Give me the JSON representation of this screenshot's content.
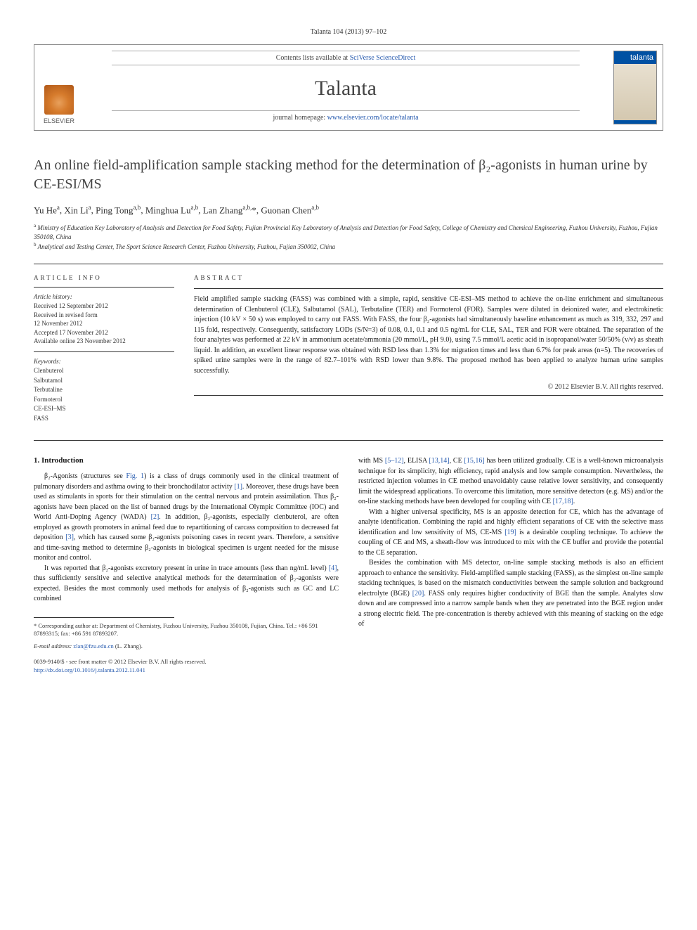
{
  "citation": "Talanta 104 (2013) 97–102",
  "header": {
    "contents_prefix": "Contents lists available at ",
    "contents_link": "SciVerse ScienceDirect",
    "journal_name": "Talanta",
    "homepage_prefix": "journal homepage: ",
    "homepage_link": "www.elsevier.com/locate/talanta",
    "publisher_name": "ELSEVIER",
    "cover_label": "talanta"
  },
  "title": "An online field-amplification sample stacking method for the determination of β₂-agonists in human urine by CE-ESI/MS",
  "authors_html": "Yu He<span class='sup'>a</span>, Xin Li<span class='sup'>a</span>, Ping Tong<span class='sup'>a,b</span>, Minghua Lu<span class='sup'>a,b</span>, Lan Zhang<span class='sup'>a,b,</span>*, Guonan Chen<span class='sup'>a,b</span>",
  "affiliations": [
    {
      "sup": "a",
      "text": "Ministry of Education Key Laboratory of Analysis and Detection for Food Safety, Fujian Provincial Key Laboratory of Analysis and Detection for Food Safety, College of Chemistry and Chemical Engineering, Fuzhou University, Fuzhou, Fujian 350108, China"
    },
    {
      "sup": "b",
      "text": "Analytical and Testing Center, The Sport Science Research Center, Fuzhou University, Fuzhou, Fujian 350002, China"
    }
  ],
  "article_info": {
    "heading": "ARTICLE INFO",
    "history_label": "Article history:",
    "history": "Received 12 September 2012\nReceived in revised form\n12 November 2012\nAccepted 17 November 2012\nAvailable online 23 November 2012",
    "keywords_label": "Keywords:",
    "keywords": [
      "Clenbuterol",
      "Salbutamol",
      "Terbutaline",
      "Formoterol",
      "CE-ESI–MS",
      "FASS"
    ]
  },
  "abstract": {
    "heading": "ABSTRACT",
    "text": "Field amplified sample stacking (FASS) was combined with a simple, rapid, sensitive CE-ESI–MS method to achieve the on-line enrichment and simultaneous determination of Clenbuterol (CLE), Salbutamol (SAL), Terbutaline (TER) and Formoterol (FOR). Samples were diluted in deionized water, and electrokinetic injection (10 kV × 50 s) was employed to carry out FASS. With FASS, the four β₂-agonists had simultaneously baseline enhancement as much as 319, 332, 297 and 115 fold, respectively. Consequently, satisfactory LODs (S/N=3) of 0.08, 0.1, 0.1 and 0.5 ng/mL for CLE, SAL, TER and FOR were obtained. The separation of the four analytes was performed at 22 kV in ammonium acetate/ammonia (20 mmol/L, pH 9.0), using 7.5 mmol/L acetic acid in isopropanol/water 50/50% (v/v) as sheath liquid. In addition, an excellent linear response was obtained with RSD less than 1.3% for migration times and less than 6.7% for peak areas (n=5). The recoveries of spiked urine samples were in the range of 82.7–101% with RSD lower than 9.8%. The proposed method has been applied to analyze human urine samples successfully.",
    "copyright": "© 2012 Elsevier B.V. All rights reserved."
  },
  "section_heading": "1. Introduction",
  "body_left": [
    "β₂-Agonists (structures see <a href='#'>Fig. 1</a>) is a class of drugs commonly used in the clinical treatment of pulmonary disorders and asthma owing to their bronchodilator activity <a href='#'>[1]</a>. Moreover, these drugs have been used as stimulants in sports for their stimulation on the central nervous and protein assimilation. Thus β₂-agonists have been placed on the list of banned drugs by the International Olympic Committee (IOC) and World Anti-Doping Agency (WADA) <a href='#'>[2]</a>. In addition, β₂-agonists, especially clenbuterol, are often employed as growth promoters in animal feed due to repartitioning of carcass composition to decreased fat deposition <a href='#'>[3]</a>, which has caused some β₂-agonists poisoning cases in recent years. Therefore, a sensitive and time-saving method to determine β₂-agonists in biological specimen is urgent needed for the misuse monitor and control.",
    "It was reported that β₂-agonists excretory present in urine in trace amounts (less than ng/mL level) <a href='#'>[4]</a>, thus sufficiently sensitive and selective analytical methods for the determination of β₂-agonists were expected. Besides the most commonly used methods for analysis of β₂-agonists such as GC and LC combined"
  ],
  "body_right": [
    "with MS <a href='#'>[5–12]</a>, ELISA <a href='#'>[13,14]</a>, CE <a href='#'>[15,16]</a> has been utilized gradually. CE is a well-known microanalysis technique for its simplicity, high efficiency, rapid analysis and low sample consumption. Nevertheless, the restricted injection volumes in CE method unavoidably cause relative lower sensitivity, and consequently limit the widespread applications. To overcome this limitation, more sensitive detectors (e.g. MS) and/or the on-line stacking methods have been developed for coupling with CE <a href='#'>[17,18]</a>.",
    "With a higher universal specificity, MS is an apposite detection for CE, which has the advantage of analyte identification. Combining the rapid and highly efficient separations of CE with the selective mass identification and low sensitivity of MS, CE-MS <a href='#'>[19]</a> is a desirable coupling technique. To achieve the coupling of CE and MS, a sheath-flow was introduced to mix with the CE buffer and provide the potential to the CE separation.",
    "Besides the combination with MS detector, on-line sample stacking methods is also an efficient approach to enhance the sensitivity. Field-amplified sample stacking (FASS), as the simplest on-line sample stacking techniques, is based on the mismatch conductivities between the sample solution and background electrolyte (BGE) <a href='#'>[20]</a>. FASS only requires higher conductivity of BGE than the sample. Analytes slow down and are compressed into a narrow sample bands when they are penetrated into the BGE region under a strong electric field. The pre-concentration is thereby achieved with this meaning of stacking on the edge of"
  ],
  "footnote": {
    "corr_label": "* Corresponding author at: Department of Chemistry, Fuzhou University, Fuzhou 350108, Fujian, China. Tel.: +86 591 87893315; fax: +86 591 87893207.",
    "email_label": "E-mail address: ",
    "email": "zlan@fzu.edu.cn",
    "email_suffix": " (L. Zhang)."
  },
  "pub": {
    "line1": "0039-9140/$ - see front matter © 2012 Elsevier B.V. All rights reserved.",
    "doi_link": "http://dx.doi.org/10.1016/j.talanta.2012.11.041"
  },
  "colors": {
    "link": "#2a5db0",
    "elsevier_orange": "#e8a05c",
    "cover_blue": "#0051a3"
  }
}
